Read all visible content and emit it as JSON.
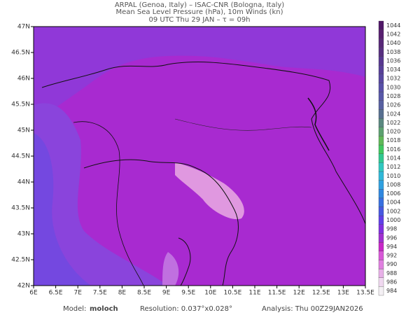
{
  "header": {
    "line1": "ARPAL (Genoa, Italy)  –  ISAC-CNR (Bologna, Italy)",
    "line2": "Mean Sea Level Pressure (hPa), 10m Winds (kn)",
    "line3": "09 UTC Thu 29 JAN  –  τ = 09h"
  },
  "map": {
    "lat_labels": [
      "47N",
      "46.5N",
      "46N",
      "45.5N",
      "45N",
      "44.5N",
      "44N",
      "43.5N",
      "43N",
      "42.5N",
      "42N"
    ],
    "lon_labels": [
      "6E",
      "6.5E",
      "7E",
      "7.5E",
      "8E",
      "8.5E",
      "9E",
      "9.5E",
      "10E",
      "10.5E",
      "11E",
      "11.5E",
      "12E",
      "12.5E",
      "13E",
      "13.5E"
    ]
  },
  "colorbar": {
    "levels": [
      984,
      986,
      988,
      990,
      992,
      994,
      996,
      998,
      1000,
      1002,
      1004,
      1006,
      1008,
      1010,
      1012,
      1014,
      1016,
      1018,
      1020,
      1022,
      1024,
      1026,
      1028,
      1030,
      1032,
      1034,
      1036,
      1038,
      1040,
      1042,
      1044
    ],
    "colors": [
      "#f4f0f4",
      "#f0d8f0",
      "#e8b0e8",
      "#e080e0",
      "#d858d8",
      "#c828c8",
      "#a030d0",
      "#8030e0",
      "#6040e8",
      "#4858e0",
      "#3870e0",
      "#3088e0",
      "#30a0e0",
      "#30b8d8",
      "#30c8c0",
      "#30c890",
      "#40c860",
      "#60b858",
      "#5ca070",
      "#5a8880",
      "#587090",
      "#5860a0",
      "#5858a8",
      "#5850a8",
      "#5848a0",
      "#584098",
      "#583890",
      "#583080",
      "#582878",
      "#582070",
      "#501868"
    ]
  },
  "footer": {
    "model_label": "Model:",
    "model": "moloch",
    "resolution": "Resolution: 0.037°x0.028°",
    "analysis": "Analysis: Thu 00Z29JAN2026"
  }
}
